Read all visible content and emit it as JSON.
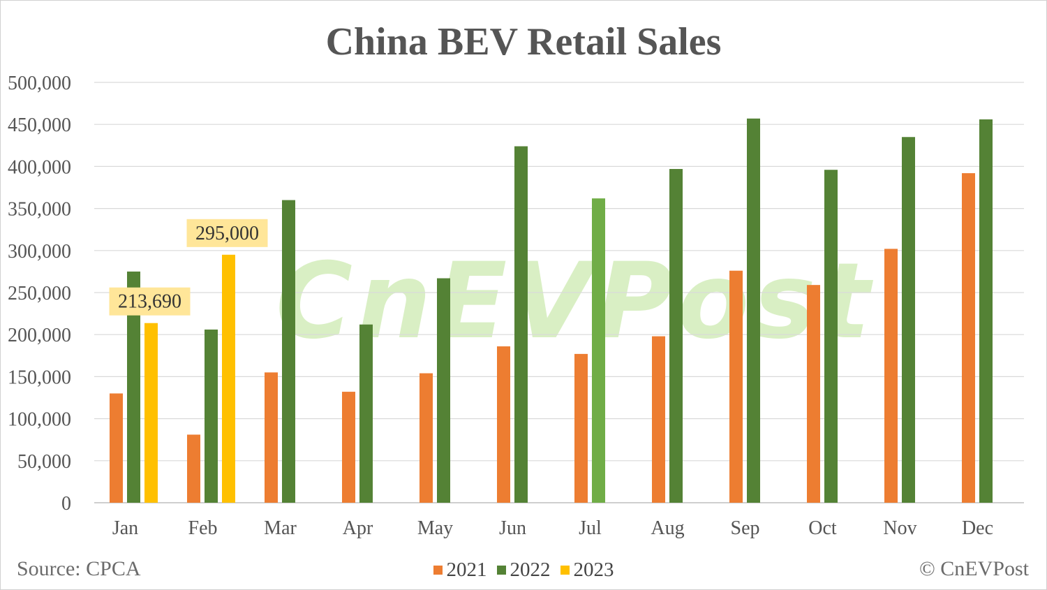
{
  "chart_data": {
    "type": "bar",
    "title": "China BEV Retail Sales",
    "categories": [
      "Jan",
      "Feb",
      "Mar",
      "Apr",
      "May",
      "Jun",
      "Jul",
      "Aug",
      "Sep",
      "Oct",
      "Nov",
      "Dec"
    ],
    "series": [
      {
        "name": "2021",
        "color": "#ED7D31",
        "values": [
          130000,
          81000,
          155000,
          132000,
          154000,
          186000,
          177000,
          198000,
          276000,
          259000,
          302000,
          392000
        ]
      },
      {
        "name": "2022",
        "color": "#548235",
        "values": [
          275000,
          206000,
          360000,
          212000,
          267000,
          424000,
          362000,
          397000,
          457000,
          396000,
          435000,
          456000
        ]
      },
      {
        "name": "2023",
        "color": "#FFC000",
        "values": [
          213690,
          295000,
          null,
          null,
          null,
          null,
          null,
          null,
          null,
          null,
          null,
          null
        ]
      }
    ],
    "highlight": {
      "series": "2022",
      "category": "Jul",
      "color": "#70AD47"
    },
    "data_labels": [
      {
        "series": "2023",
        "category": "Jan",
        "text": "213,690"
      },
      {
        "series": "2023",
        "category": "Feb",
        "text": "295,000"
      }
    ],
    "y_ticks": [
      "0",
      "50,000",
      "100,000",
      "150,000",
      "200,000",
      "250,000",
      "300,000",
      "350,000",
      "400,000",
      "450,000",
      "500,000"
    ],
    "ylim": [
      0,
      500000
    ],
    "grid": true,
    "legend_position": "bottom",
    "source": "Source: CPCA",
    "copyright": "© CnEVPost",
    "watermark": "CnEVPost"
  }
}
